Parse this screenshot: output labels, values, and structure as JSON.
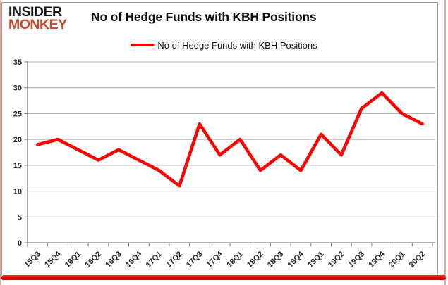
{
  "logo": {
    "line1": "INSIDER",
    "line2": "MONKEY",
    "monkey_color": "#c6492f"
  },
  "header": {
    "title": "No of Hedge Funds with KBH Positions"
  },
  "legend": {
    "label": "No of Hedge Funds with KBH Positions",
    "line_color": "#fe0000"
  },
  "colors": {
    "series_red": "#fe0000",
    "gridline": "#ababab",
    "axis": "#7d7d7d",
    "bottom_bar_red": "#e60000",
    "frame_border": "#9c9c9c",
    "outer_edge_pink": "#dca89f"
  },
  "chart_data": {
    "type": "line",
    "title": "No of Hedge Funds with KBH Positions",
    "xlabel": "",
    "ylabel": "",
    "grid": "horizontal",
    "legend_position": "top-center",
    "ylim": [
      0,
      35
    ],
    "yticks": [
      0,
      5,
      10,
      15,
      20,
      25,
      30,
      35
    ],
    "categories": [
      "15Q3",
      "15Q4",
      "16Q1",
      "16Q2",
      "16Q3",
      "16Q4",
      "17Q1",
      "17Q2",
      "17Q3",
      "17Q4",
      "18Q1",
      "18Q2",
      "18Q3",
      "18Q4",
      "19Q1",
      "19Q2",
      "19Q3",
      "19Q4",
      "20Q1",
      "20Q2"
    ],
    "series": [
      {
        "name": "No of Hedge Funds with KBH Positions",
        "color": "#fe0000",
        "values": [
          19,
          20,
          18,
          16,
          18,
          16,
          14,
          11,
          23,
          17,
          20,
          14,
          17,
          14,
          21,
          17,
          26,
          29,
          25,
          23
        ]
      }
    ]
  }
}
